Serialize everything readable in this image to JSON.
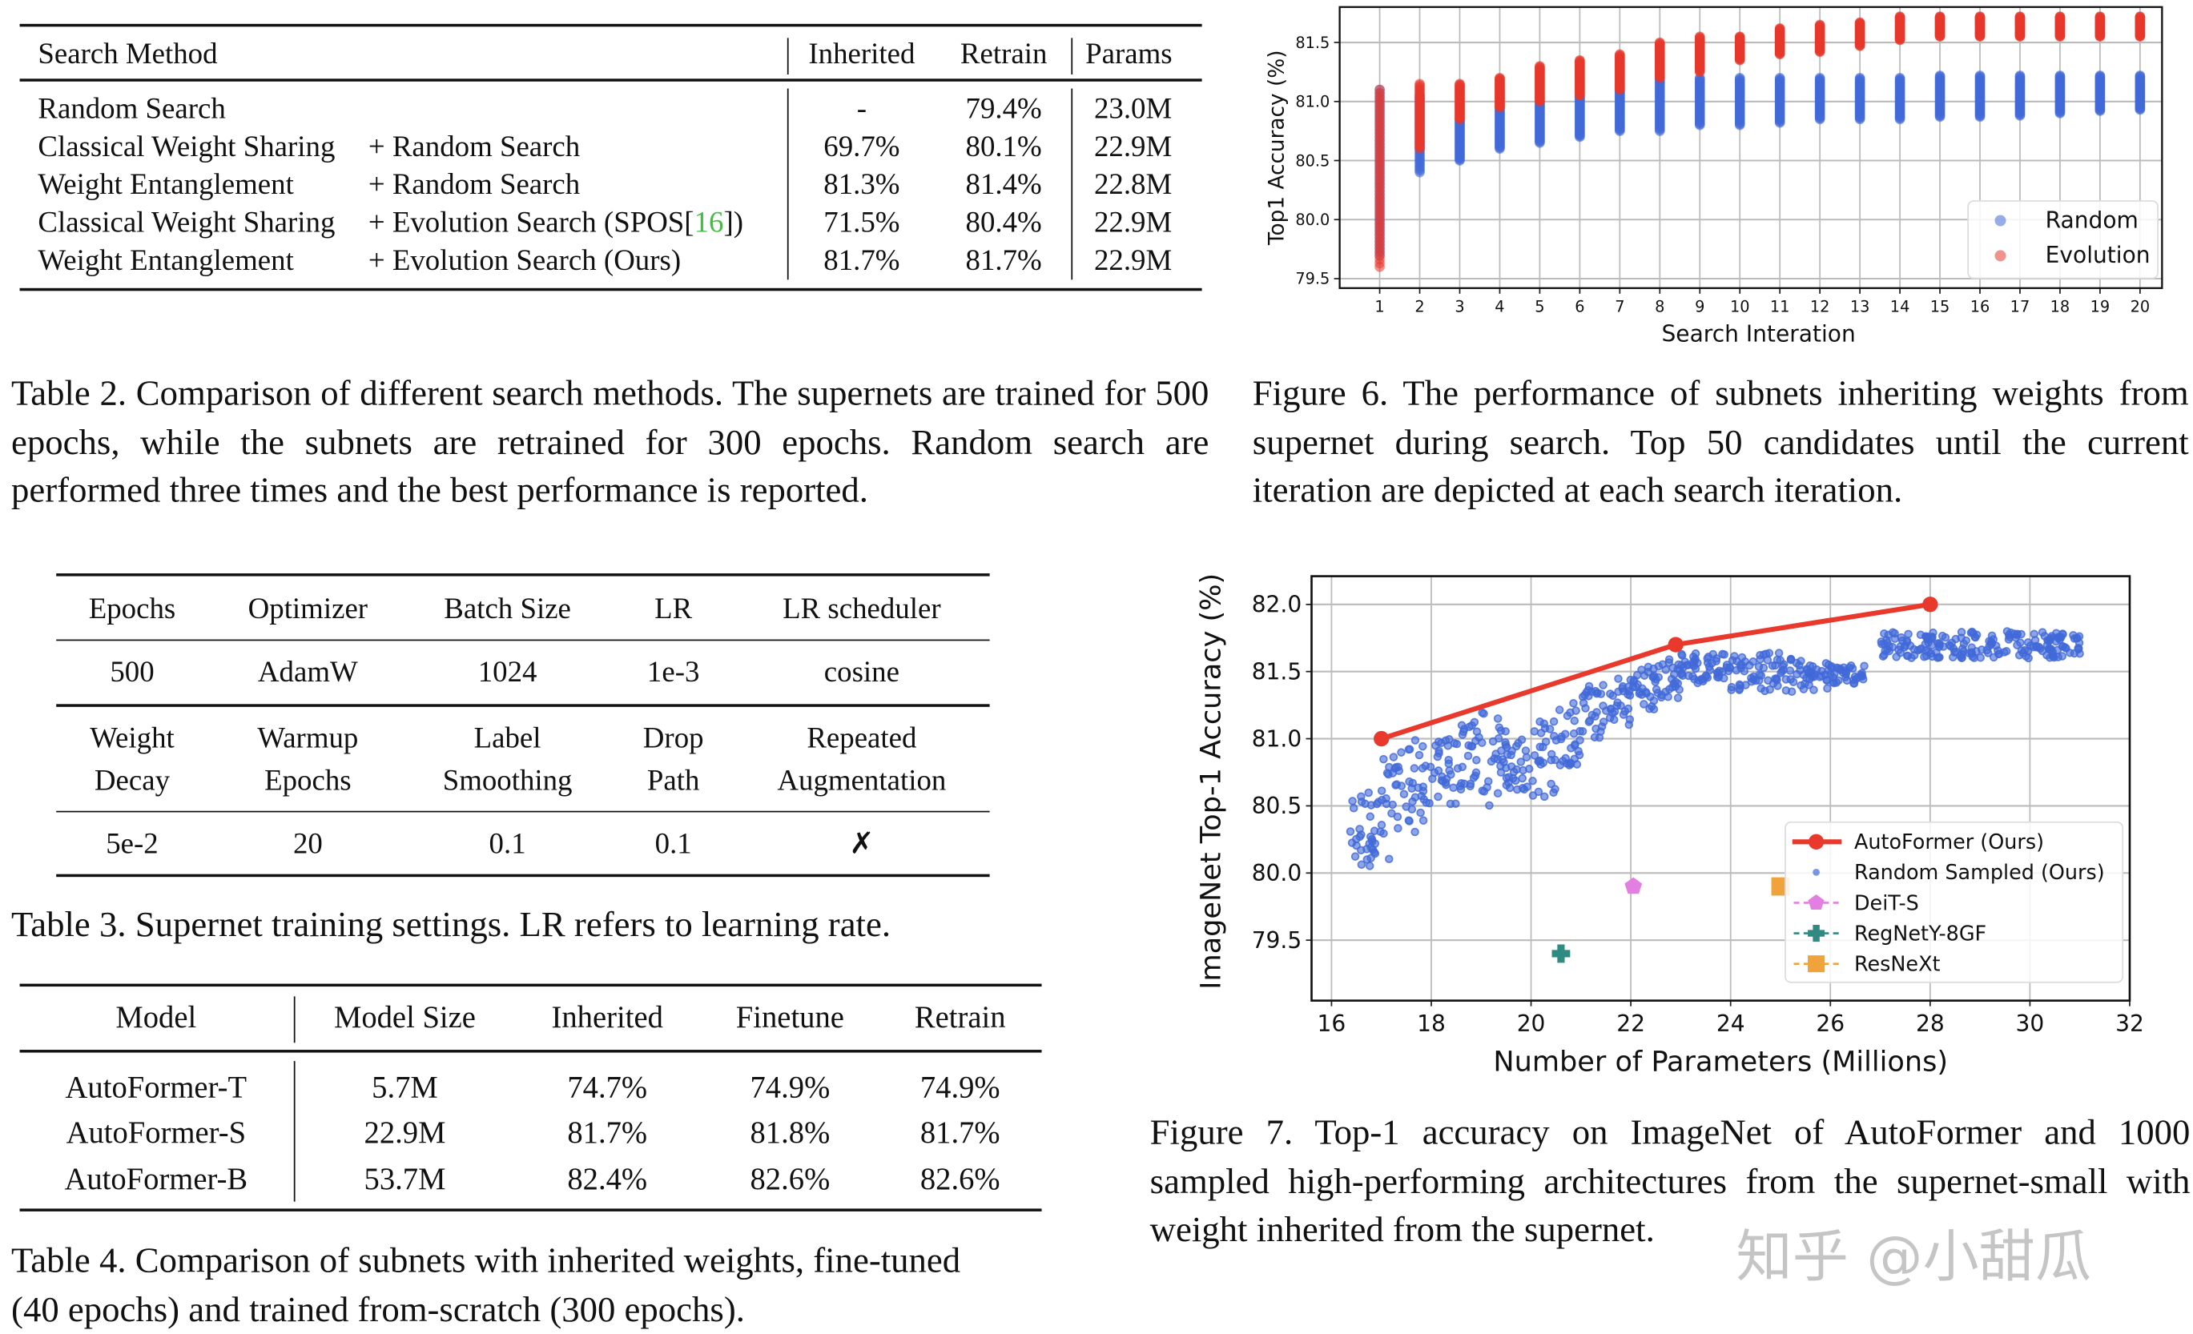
{
  "table2": {
    "headers": [
      "Search Method",
      "Inherited",
      "Retrain",
      "Params"
    ],
    "rows": [
      {
        "method_a": "Random Search",
        "method_b": "",
        "ref": "",
        "ref_close": "",
        "inherited": "-",
        "retrain": "79.4%",
        "params": "23.0M"
      },
      {
        "method_a": "Classical Weight Sharing",
        "method_b": "+ Random Search",
        "ref": "",
        "ref_close": "",
        "inherited": "69.7%",
        "retrain": "80.1%",
        "params": "22.9M"
      },
      {
        "method_a": "Weight Entanglement",
        "method_b": "+ Random Search",
        "ref": "",
        "ref_close": "",
        "inherited": "81.3%",
        "retrain": "81.4%",
        "params": "22.8M"
      },
      {
        "method_a": "Classical Weight Sharing",
        "method_b": "+ Evolution Search (SPOS[",
        "ref": "16",
        "ref_close": "])",
        "inherited": "71.5%",
        "retrain": "80.4%",
        "params": "22.9M"
      },
      {
        "method_a": "Weight Entanglement",
        "method_b": "+ Evolution Search (Ours)",
        "ref": "",
        "ref_close": "",
        "inherited": "81.7%",
        "retrain": "81.7%",
        "params": "22.9M"
      }
    ],
    "caption": "Table 2. Comparison of different search methods. The supernets are trained for 500 epochs, while the subnets are retrained for 300 epochs. Random search are performed three times and the best performance is reported."
  },
  "figure6": {
    "caption": "Figure 6. The performance of subnets inheriting weights from supernet during search. Top 50 candidates until the current iteration are depicted at each search iteration."
  },
  "table3": {
    "row1_headers": [
      "Epochs",
      "Optimizer",
      "Batch Size",
      "LR",
      "LR scheduler"
    ],
    "row1_values": [
      "500",
      "AdamW",
      "1024",
      "1e-3",
      "cosine"
    ],
    "row2_headers": [
      [
        "Weight",
        "Decay"
      ],
      [
        "Warmup",
        "Epochs"
      ],
      [
        "Label",
        "Smoothing"
      ],
      [
        "Drop",
        "Path"
      ],
      [
        "Repeated",
        "Augmentation"
      ]
    ],
    "row2_values": [
      "5e-2",
      "20",
      "0.1",
      "0.1",
      "✗"
    ],
    "caption": "Table 3. Supernet training settings. LR refers to learning rate."
  },
  "table4": {
    "headers": [
      "Model",
      "Model Size",
      "Inherited",
      "Finetune",
      "Retrain"
    ],
    "rows": [
      [
        "AutoFormer-T",
        "5.7M",
        "74.7%",
        "74.9%",
        "74.9%"
      ],
      [
        "AutoFormer-S",
        "22.9M",
        "81.7%",
        "81.8%",
        "81.7%"
      ],
      [
        "AutoFormer-B",
        "53.7M",
        "82.4%",
        "82.6%",
        "82.6%"
      ]
    ],
    "caption_1": "Table 4. Comparison of subnets with inherited weights, fine-tuned",
    "caption_2": "(40 epochs) and trained from-scratch (300 epochs)."
  },
  "figure7": {
    "caption": "Figure 7. Top-1 accuracy on ImageNet of AutoFormer and 1000 sampled high-performing architectures from the supernet-small with weight inherited from the supernet."
  },
  "watermark": "知乎 @小甜瓜",
  "chart_data": [
    {
      "type": "scatter",
      "xlabel": "Search Interation",
      "ylabel": "Top1 Accuracy (%)",
      "xticks": [
        1,
        2,
        3,
        4,
        5,
        6,
        7,
        8,
        9,
        10,
        11,
        12,
        13,
        14,
        15,
        16,
        17,
        18,
        19,
        20
      ],
      "yticks": [
        79.5,
        80.0,
        80.5,
        81.0,
        81.5
      ],
      "xlim": [
        0,
        20.55
      ],
      "ylim": [
        79.42,
        81.8
      ],
      "grid": true,
      "legend_position": "bottom-right",
      "series": [
        {
          "name": "Random",
          "color": "#4169d8",
          "ranges": [
            [
              79.7,
              81.1
            ],
            [
              80.4,
              81.05
            ],
            [
              80.5,
              80.85
            ],
            [
              80.6,
              80.95
            ],
            [
              80.65,
              81.0
            ],
            [
              80.7,
              81.05
            ],
            [
              80.75,
              81.1
            ],
            [
              80.75,
              81.2
            ],
            [
              80.8,
              81.2
            ],
            [
              80.8,
              81.2
            ],
            [
              80.82,
              81.2
            ],
            [
              80.85,
              81.2
            ],
            [
              80.85,
              81.2
            ],
            [
              80.85,
              81.2
            ],
            [
              80.87,
              81.22
            ],
            [
              80.87,
              81.22
            ],
            [
              80.88,
              81.22
            ],
            [
              80.9,
              81.22
            ],
            [
              80.92,
              81.22
            ],
            [
              80.93,
              81.22
            ]
          ]
        },
        {
          "name": "Evolution",
          "color": "#e8392c",
          "ranges": [
            [
              79.6,
              81.1
            ],
            [
              80.6,
              81.15
            ],
            [
              80.85,
              81.15
            ],
            [
              80.95,
              81.2
            ],
            [
              81.0,
              81.3
            ],
            [
              81.05,
              81.35
            ],
            [
              81.1,
              81.4
            ],
            [
              81.2,
              81.5
            ],
            [
              81.25,
              81.55
            ],
            [
              81.35,
              81.55
            ],
            [
              81.4,
              81.62
            ],
            [
              81.42,
              81.65
            ],
            [
              81.47,
              81.67
            ],
            [
              81.52,
              81.72
            ],
            [
              81.55,
              81.72
            ],
            [
              81.55,
              81.72
            ],
            [
              81.55,
              81.72
            ],
            [
              81.55,
              81.72
            ],
            [
              81.55,
              81.72
            ],
            [
              81.55,
              81.72
            ]
          ]
        }
      ]
    },
    {
      "type": "scatter",
      "xlabel": "Number of Parameters (Millions)",
      "ylabel": "ImageNet Top-1 Accuracy (%)",
      "xticks": [
        16,
        18,
        20,
        22,
        24,
        26,
        28,
        30,
        32
      ],
      "yticks": [
        79.5,
        80.0,
        80.5,
        81.0,
        81.5,
        82.0
      ],
      "xlim": [
        15.6,
        32.0
      ],
      "ylim": [
        79.05,
        82.21
      ],
      "grid": true,
      "legend_position": "bottom-right",
      "series": [
        {
          "name": "AutoFormer (Ours)",
          "color": "#e8392c",
          "marker": "circle-line",
          "points": [
            [
              17.0,
              81.0
            ],
            [
              22.9,
              81.7
            ],
            [
              28.0,
              82.0
            ]
          ]
        },
        {
          "name": "Random Sampled (Ours)",
          "color": "#4169d8",
          "marker": "dot",
          "bins": [
            [
              16.3,
              17.0,
              80.05,
              80.6
            ],
            [
              17.0,
              17.5,
              80.1,
              80.9
            ],
            [
              17.5,
              18.0,
              80.3,
              81.0
            ],
            [
              18.0,
              18.5,
              80.5,
              81.0
            ],
            [
              18.5,
              19.0,
              80.6,
              81.15
            ],
            [
              19.0,
              19.5,
              80.5,
              81.2
            ],
            [
              19.5,
              20.0,
              80.6,
              81.0
            ],
            [
              20.0,
              20.5,
              80.55,
              81.15
            ],
            [
              20.5,
              21.0,
              80.8,
              81.3
            ],
            [
              21.0,
              21.5,
              81.0,
              81.4
            ],
            [
              21.5,
              22.0,
              81.1,
              81.45
            ],
            [
              22.0,
              22.5,
              81.2,
              81.55
            ],
            [
              22.5,
              23.0,
              81.3,
              81.6
            ],
            [
              23.0,
              23.5,
              81.4,
              81.65
            ],
            [
              23.5,
              24.0,
              81.45,
              81.65
            ],
            [
              24.0,
              25.0,
              81.35,
              81.65
            ],
            [
              25.0,
              26.0,
              81.35,
              81.6
            ],
            [
              26.0,
              26.7,
              81.4,
              81.55
            ],
            [
              27.0,
              28.0,
              81.6,
              81.8
            ],
            [
              28.0,
              29.0,
              81.6,
              81.8
            ],
            [
              29.0,
              31.0,
              81.6,
              81.8
            ]
          ]
        },
        {
          "name": "DeiT-S",
          "color": "#e27fe0",
          "marker": "pentagon",
          "points": [
            [
              22.05,
              79.9
            ]
          ]
        },
        {
          "name": "RegNetY-8GF",
          "color": "#2f8a82",
          "marker": "plus",
          "points": [
            [
              20.6,
              79.4
            ]
          ]
        },
        {
          "name": "ResNeXt",
          "color": "#f0a33a",
          "marker": "square",
          "points": [
            [
              25.0,
              79.9
            ]
          ]
        }
      ]
    }
  ]
}
